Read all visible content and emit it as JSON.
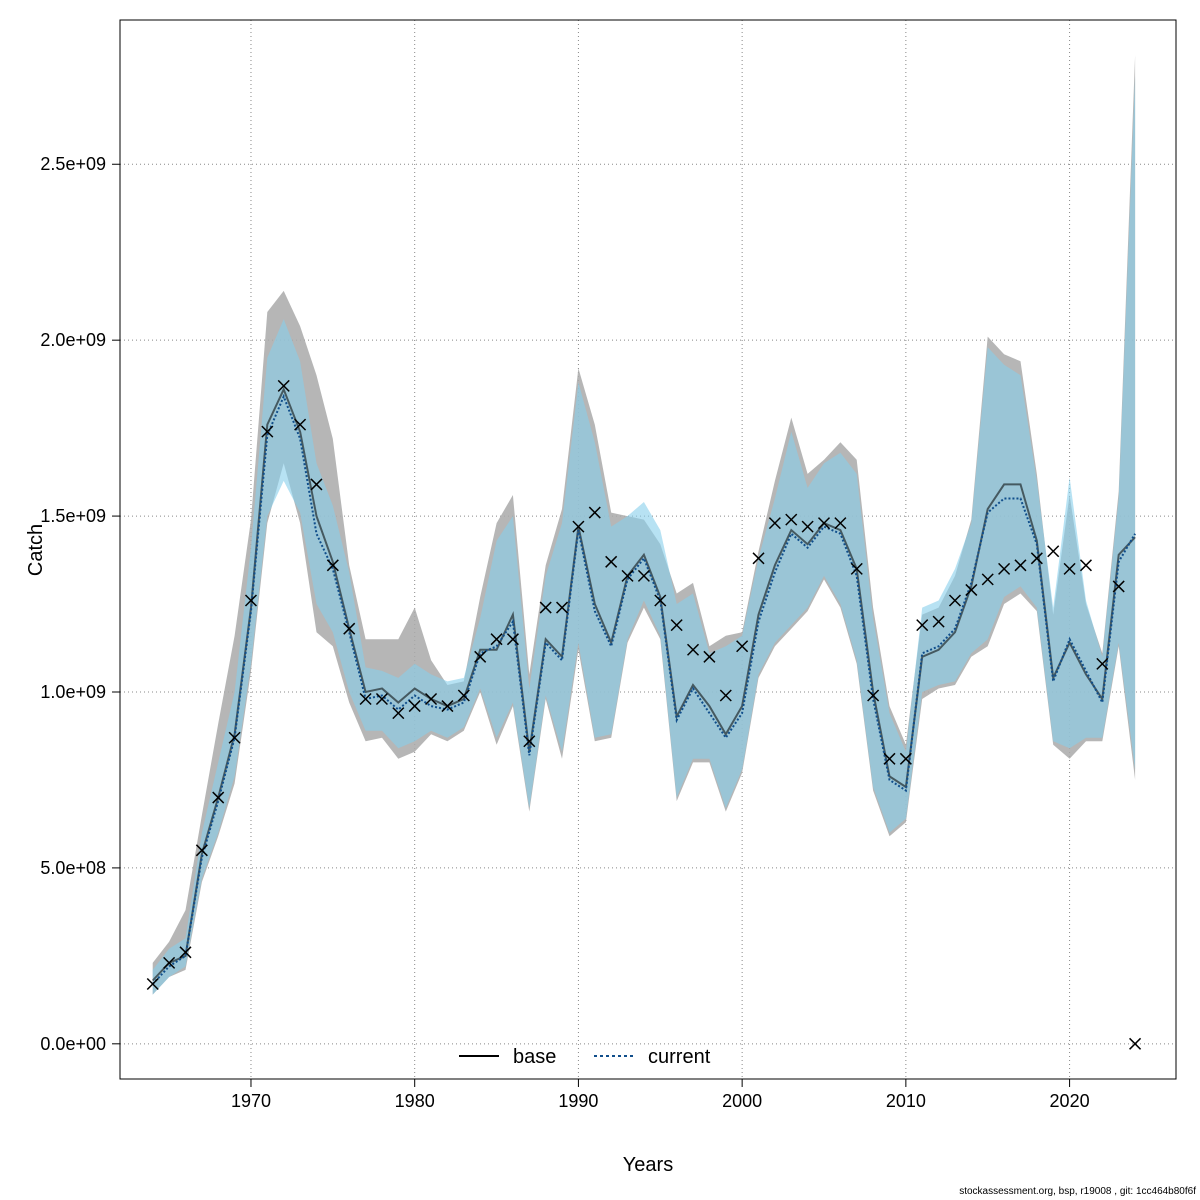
{
  "chart_data": {
    "type": "line",
    "xlabel": "Years",
    "ylabel": "Catch",
    "xlim": [
      1962,
      2026.5
    ],
    "ylim": [
      -100000000.0,
      2910000000.0
    ],
    "x_ticks": [
      1970,
      1980,
      1990,
      2000,
      2010,
      2020
    ],
    "x_tick_labels": [
      "1970",
      "1980",
      "1990",
      "2000",
      "2010",
      "2020"
    ],
    "y_ticks": [
      0,
      500000000.0,
      1000000000.0,
      1500000000.0,
      2000000000.0,
      2500000000.0
    ],
    "y_tick_labels": [
      "0.0e+00",
      "5.0e+08",
      "1.0e+09",
      "1.5e+09",
      "2.0e+09",
      "2.5e+09"
    ],
    "grid": true,
    "legend_position": "bottom",
    "colors": {
      "base_line": "#000000",
      "base_band": "#a9a9a9",
      "current_line": "#104e8b",
      "current_band": "#87ceeb",
      "observed": "#000000"
    },
    "legend": [
      {
        "label": "base",
        "style": "solid"
      },
      {
        "label": "current",
        "style": "dotted"
      }
    ],
    "years": [
      1964,
      1965,
      1966,
      1967,
      1968,
      1969,
      1970,
      1971,
      1972,
      1973,
      1974,
      1975,
      1976,
      1977,
      1978,
      1979,
      1980,
      1981,
      1982,
      1983,
      1984,
      1985,
      1986,
      1987,
      1988,
      1989,
      1990,
      1991,
      1992,
      1993,
      1994,
      1995,
      1996,
      1997,
      1998,
      1999,
      2000,
      2001,
      2002,
      2003,
      2004,
      2005,
      2006,
      2007,
      2008,
      2009,
      2010,
      2011,
      2012,
      2013,
      2014,
      2015,
      2016,
      2017,
      2018,
      2019,
      2020,
      2021,
      2022,
      2023,
      2024
    ],
    "series": [
      {
        "name": "base",
        "median": [
          180000000.0,
          230000000.0,
          250000000.0,
          540000000.0,
          700000000.0,
          880000000.0,
          1240000000.0,
          1760000000.0,
          1860000000.0,
          1740000000.0,
          1500000000.0,
          1370000000.0,
          1180000000.0,
          1000000000.0,
          1010000000.0,
          970000000.0,
          1010000000.0,
          980000000.0,
          960000000.0,
          980000000.0,
          1120000000.0,
          1120000000.0,
          1220000000.0,
          830000000.0,
          1150000000.0,
          1100000000.0,
          1470000000.0,
          1250000000.0,
          1140000000.0,
          1330000000.0,
          1390000000.0,
          1270000000.0,
          930000000.0,
          1020000000.0,
          960000000.0,
          880000000.0,
          960000000.0,
          1220000000.0,
          1360000000.0,
          1460000000.0,
          1420000000.0,
          1480000000.0,
          1460000000.0,
          1350000000.0,
          1000000000.0,
          760000000.0,
          730000000.0,
          1100000000.0,
          1120000000.0,
          1170000000.0,
          1300000000.0,
          1520000000.0,
          1590000000.0,
          1590000000.0,
          1430000000.0,
          1040000000.0,
          1140000000.0,
          1050000000.0,
          980000000.0,
          1390000000.0,
          1440000000.0
        ],
        "lower": [
          140000000.0,
          190000000.0,
          210000000.0,
          460000000.0,
          590000000.0,
          740000000.0,
          1060000000.0,
          1480000000.0,
          1650000000.0,
          1480000000.0,
          1170000000.0,
          1130000000.0,
          970000000.0,
          860000000.0,
          870000000.0,
          810000000.0,
          830000000.0,
          880000000.0,
          860000000.0,
          890000000.0,
          1000000000.0,
          850000000.0,
          960000000.0,
          660000000.0,
          980000000.0,
          810000000.0,
          1120000000.0,
          860000000.0,
          870000000.0,
          1140000000.0,
          1240000000.0,
          1150000000.0,
          690000000.0,
          800000000.0,
          800000000.0,
          660000000.0,
          770000000.0,
          1040000000.0,
          1130000000.0,
          1180000000.0,
          1230000000.0,
          1320000000.0,
          1240000000.0,
          1080000000.0,
          720000000.0,
          590000000.0,
          630000000.0,
          980000000.0,
          1010000000.0,
          1020000000.0,
          1100000000.0,
          1130000000.0,
          1250000000.0,
          1280000000.0,
          1230000000.0,
          850000000.0,
          810000000.0,
          860000000.0,
          860000000.0,
          1130000000.0,
          750000000.0
        ],
        "upper": [
          230000000.0,
          290000000.0,
          380000000.0,
          650000000.0,
          910000000.0,
          1160000000.0,
          1490000000.0,
          2080000000.0,
          2140000000.0,
          2040000000.0,
          1900000000.0,
          1720000000.0,
          1360000000.0,
          1150000000.0,
          1150000000.0,
          1150000000.0,
          1240000000.0,
          1090000000.0,
          1020000000.0,
          1030000000.0,
          1270000000.0,
          1480000000.0,
          1560000000.0,
          1050000000.0,
          1360000000.0,
          1520000000.0,
          1920000000.0,
          1760000000.0,
          1510000000.0,
          1500000000.0,
          1490000000.0,
          1420000000.0,
          1280000000.0,
          1310000000.0,
          1130000000.0,
          1160000000.0,
          1170000000.0,
          1400000000.0,
          1600000000.0,
          1780000000.0,
          1620000000.0,
          1660000000.0,
          1710000000.0,
          1660000000.0,
          1240000000.0,
          960000000.0,
          850000000.0,
          1220000000.0,
          1240000000.0,
          1330000000.0,
          1490000000.0,
          2010000000.0,
          1960000000.0,
          1940000000.0,
          1620000000.0,
          1220000000.0,
          1560000000.0,
          1250000000.0,
          1110000000.0,
          1570000000.0,
          2810000000.0
        ]
      },
      {
        "name": "current",
        "median": [
          170000000.0,
          220000000.0,
          250000000.0,
          530000000.0,
          690000000.0,
          870000000.0,
          1230000000.0,
          1730000000.0,
          1840000000.0,
          1720000000.0,
          1450000000.0,
          1350000000.0,
          1170000000.0,
          980000000.0,
          990000000.0,
          950000000.0,
          990000000.0,
          960000000.0,
          950000000.0,
          970000000.0,
          1110000000.0,
          1130000000.0,
          1200000000.0,
          820000000.0,
          1140000000.0,
          1090000000.0,
          1460000000.0,
          1230000000.0,
          1130000000.0,
          1320000000.0,
          1380000000.0,
          1260000000.0,
          920000000.0,
          1010000000.0,
          940000000.0,
          870000000.0,
          940000000.0,
          1200000000.0,
          1340000000.0,
          1450000000.0,
          1410000000.0,
          1470000000.0,
          1450000000.0,
          1330000000.0,
          980000000.0,
          750000000.0,
          720000000.0,
          1110000000.0,
          1130000000.0,
          1180000000.0,
          1310000000.0,
          1510000000.0,
          1550000000.0,
          1550000000.0,
          1420000000.0,
          1030000000.0,
          1150000000.0,
          1060000000.0,
          970000000.0,
          1370000000.0,
          1450000000.0
        ],
        "lower": [
          140000000.0,
          190000000.0,
          220000000.0,
          470000000.0,
          600000000.0,
          760000000.0,
          1080000000.0,
          1500000000.0,
          1600000000.0,
          1510000000.0,
          1250000000.0,
          1170000000.0,
          1000000000.0,
          890000000.0,
          890000000.0,
          840000000.0,
          860000000.0,
          890000000.0,
          870000000.0,
          900000000.0,
          1010000000.0,
          870000000.0,
          970000000.0,
          670000000.0,
          990000000.0,
          830000000.0,
          1140000000.0,
          870000000.0,
          880000000.0,
          1150000000.0,
          1260000000.0,
          1160000000.0,
          700000000.0,
          810000000.0,
          810000000.0,
          670000000.0,
          780000000.0,
          1050000000.0,
          1140000000.0,
          1190000000.0,
          1240000000.0,
          1330000000.0,
          1250000000.0,
          1090000000.0,
          730000000.0,
          600000000.0,
          640000000.0,
          1000000000.0,
          1020000000.0,
          1030000000.0,
          1110000000.0,
          1150000000.0,
          1270000000.0,
          1300000000.0,
          1240000000.0,
          860000000.0,
          840000000.0,
          870000000.0,
          870000000.0,
          1140000000.0,
          780000000.0
        ],
        "upper": [
          210000000.0,
          270000000.0,
          300000000.0,
          600000000.0,
          800000000.0,
          1000000000.0,
          1410000000.0,
          1950000000.0,
          2060000000.0,
          1940000000.0,
          1650000000.0,
          1530000000.0,
          1340000000.0,
          1070000000.0,
          1060000000.0,
          1040000000.0,
          1080000000.0,
          1050000000.0,
          1030000000.0,
          1040000000.0,
          1210000000.0,
          1430000000.0,
          1500000000.0,
          1010000000.0,
          1330000000.0,
          1480000000.0,
          1880000000.0,
          1710000000.0,
          1470000000.0,
          1500000000.0,
          1540000000.0,
          1460000000.0,
          1250000000.0,
          1280000000.0,
          1110000000.0,
          1130000000.0,
          1160000000.0,
          1380000000.0,
          1550000000.0,
          1740000000.0,
          1580000000.0,
          1650000000.0,
          1680000000.0,
          1620000000.0,
          1210000000.0,
          940000000.0,
          830000000.0,
          1240000000.0,
          1260000000.0,
          1350000000.0,
          1480000000.0,
          1980000000.0,
          1930000000.0,
          1900000000.0,
          1600000000.0,
          1240000000.0,
          1610000000.0,
          1260000000.0,
          1100000000.0,
          1550000000.0,
          2750000000.0
        ]
      }
    ],
    "observed": [
      170000000.0,
      230000000.0,
      260000000.0,
      550000000.0,
      700000000.0,
      870000000.0,
      1260000000.0,
      1740000000.0,
      1870000000.0,
      1760000000.0,
      1590000000.0,
      1360000000.0,
      1180000000.0,
      980000000.0,
      980000000.0,
      940000000.0,
      960000000.0,
      980000000.0,
      960000000.0,
      990000000.0,
      1100000000.0,
      1150000000.0,
      1150000000.0,
      860000000.0,
      1240000000.0,
      1240000000.0,
      1470000000.0,
      1510000000.0,
      1370000000.0,
      1330000000.0,
      1330000000.0,
      1260000000.0,
      1190000000.0,
      1120000000.0,
      1100000000.0,
      990000000.0,
      1130000000.0,
      1380000000.0,
      1480000000.0,
      1490000000.0,
      1470000000.0,
      1480000000.0,
      1480000000.0,
      1350000000.0,
      990000000.0,
      810000000.0,
      810000000.0,
      1190000000.0,
      1200000000.0,
      1260000000.0,
      1290000000.0,
      1320000000.0,
      1350000000.0,
      1360000000.0,
      1380000000.0,
      1400000000.0,
      1350000000.0,
      1360000000.0,
      1080000000.0,
      1300000000.0,
      0.0
    ]
  },
  "footer": "stockassessment.org, bsp, r19008 , git: 1cc464b80f6f"
}
